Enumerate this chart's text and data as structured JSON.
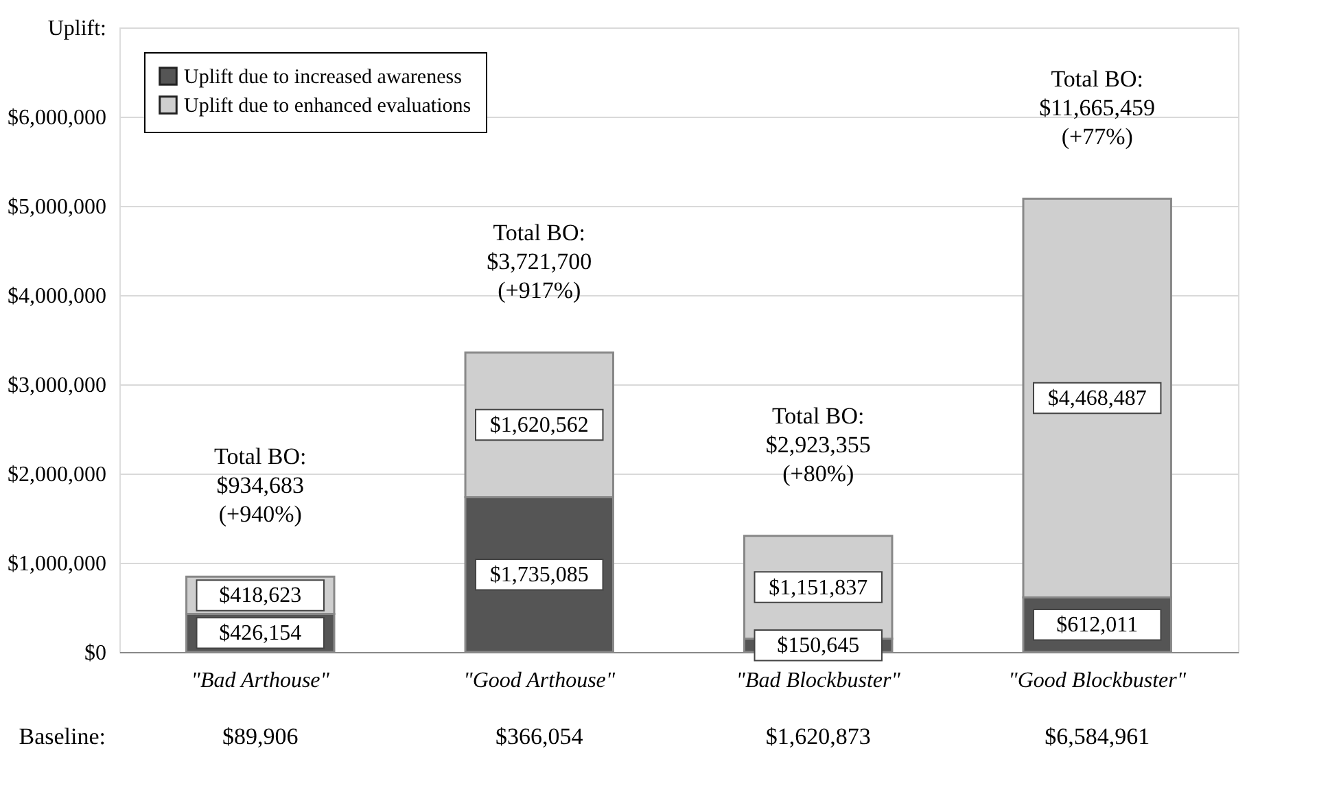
{
  "chart_data": {
    "type": "bar",
    "stacked": true,
    "categories": [
      "\"Bad Arthouse\"",
      "\"Good Arthouse\"",
      "\"Bad Blockbuster\"",
      "\"Good Blockbuster\""
    ],
    "series": [
      {
        "name": "Uplift due to increased awareness",
        "color": "#555555",
        "values": [
          426154,
          1735085,
          150645,
          612011
        ],
        "value_labels": [
          "$426,154",
          "$1,735,085",
          "$150,645",
          "$612,011"
        ]
      },
      {
        "name": "Uplift due to enhanced evaluations",
        "color": "#cfcfcf",
        "values": [
          418623,
          1620562,
          1151837,
          4468487
        ],
        "value_labels": [
          "$418,623",
          "$1,620,562",
          "$1,151,837",
          "$4,468,487"
        ]
      }
    ],
    "ylim": [
      0,
      7000000
    ],
    "yticks": [
      {
        "value": 0,
        "label": "$0"
      },
      {
        "value": 1000000,
        "label": "$1,000,000"
      },
      {
        "value": 2000000,
        "label": "$2,000,000"
      },
      {
        "value": 3000000,
        "label": "$3,000,000"
      },
      {
        "value": 4000000,
        "label": "$4,000,000"
      },
      {
        "value": 5000000,
        "label": "$5,000,000"
      },
      {
        "value": 6000000,
        "label": "$6,000,000"
      },
      {
        "value": 7000000,
        "label": "Uplift:"
      }
    ],
    "grid": "y",
    "legend": "top left",
    "annotations": [
      "Total BO:\n$934,683\n(+940%)",
      "Total BO:\n$3,721,700\n(+917%)",
      "Total BO:\n$2,923,355\n(+80%)",
      "Total BO:\n$11,665,459\n(+77%)",
      "Baseline:",
      "$89,906",
      "$366,054",
      "$1,620,873",
      "$6,584,961"
    ]
  }
}
